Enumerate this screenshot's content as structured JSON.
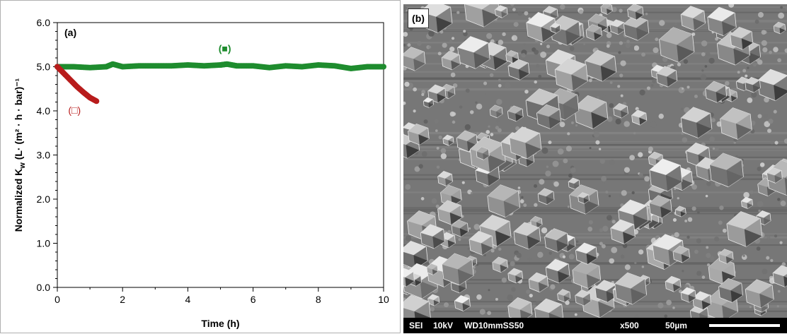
{
  "chart_data": {
    "type": "scatter",
    "panel_label": "(a)",
    "xlabel": "Time (h)",
    "ylabel": "Normalized K_w (L· (m² · h · bar)⁻¹",
    "xlim": [
      0,
      10
    ],
    "ylim": [
      0,
      6
    ],
    "x_ticks": [
      0,
      2,
      4,
      6,
      8,
      10
    ],
    "y_ticks": [
      0.0,
      1.0,
      2.0,
      3.0,
      4.0,
      5.0,
      6.0
    ],
    "x_tick_labels": [
      "0",
      "2",
      "4",
      "6",
      "8",
      "10"
    ],
    "y_tick_labels": [
      "0.0",
      "1.0",
      "2.0",
      "3.0",
      "4.0",
      "5.0",
      "6.0"
    ],
    "grid": false,
    "series": [
      {
        "name": "(■)",
        "color": "#1e8c2e",
        "x": [
          0.0,
          0.5,
          1.0,
          1.5,
          1.7,
          2.0,
          2.5,
          3.0,
          3.5,
          4.0,
          4.5,
          5.0,
          5.2,
          5.5,
          6.0,
          6.5,
          7.0,
          7.5,
          8.0,
          8.5,
          9.0,
          9.5,
          10.0
        ],
        "y": [
          5.0,
          5.0,
          4.98,
          5.0,
          5.06,
          5.0,
          5.02,
          5.02,
          5.02,
          5.04,
          5.02,
          5.04,
          5.06,
          5.02,
          5.02,
          4.98,
          5.02,
          5.0,
          5.04,
          5.02,
          4.96,
          5.0,
          5.0
        ]
      },
      {
        "name": "(□)",
        "color": "#b81c1c",
        "x": [
          0.0,
          0.2,
          0.4,
          0.6,
          0.8,
          1.0,
          1.2
        ],
        "y": [
          5.0,
          4.85,
          4.7,
          4.55,
          4.42,
          4.3,
          4.22
        ]
      }
    ]
  },
  "sem_image": {
    "panel_label": "(b)",
    "info_bar": {
      "detector": "SEI",
      "voltage": "10kV",
      "working_distance": "WD10mmSS50",
      "magnification": "x500",
      "scale": "50µm"
    }
  }
}
